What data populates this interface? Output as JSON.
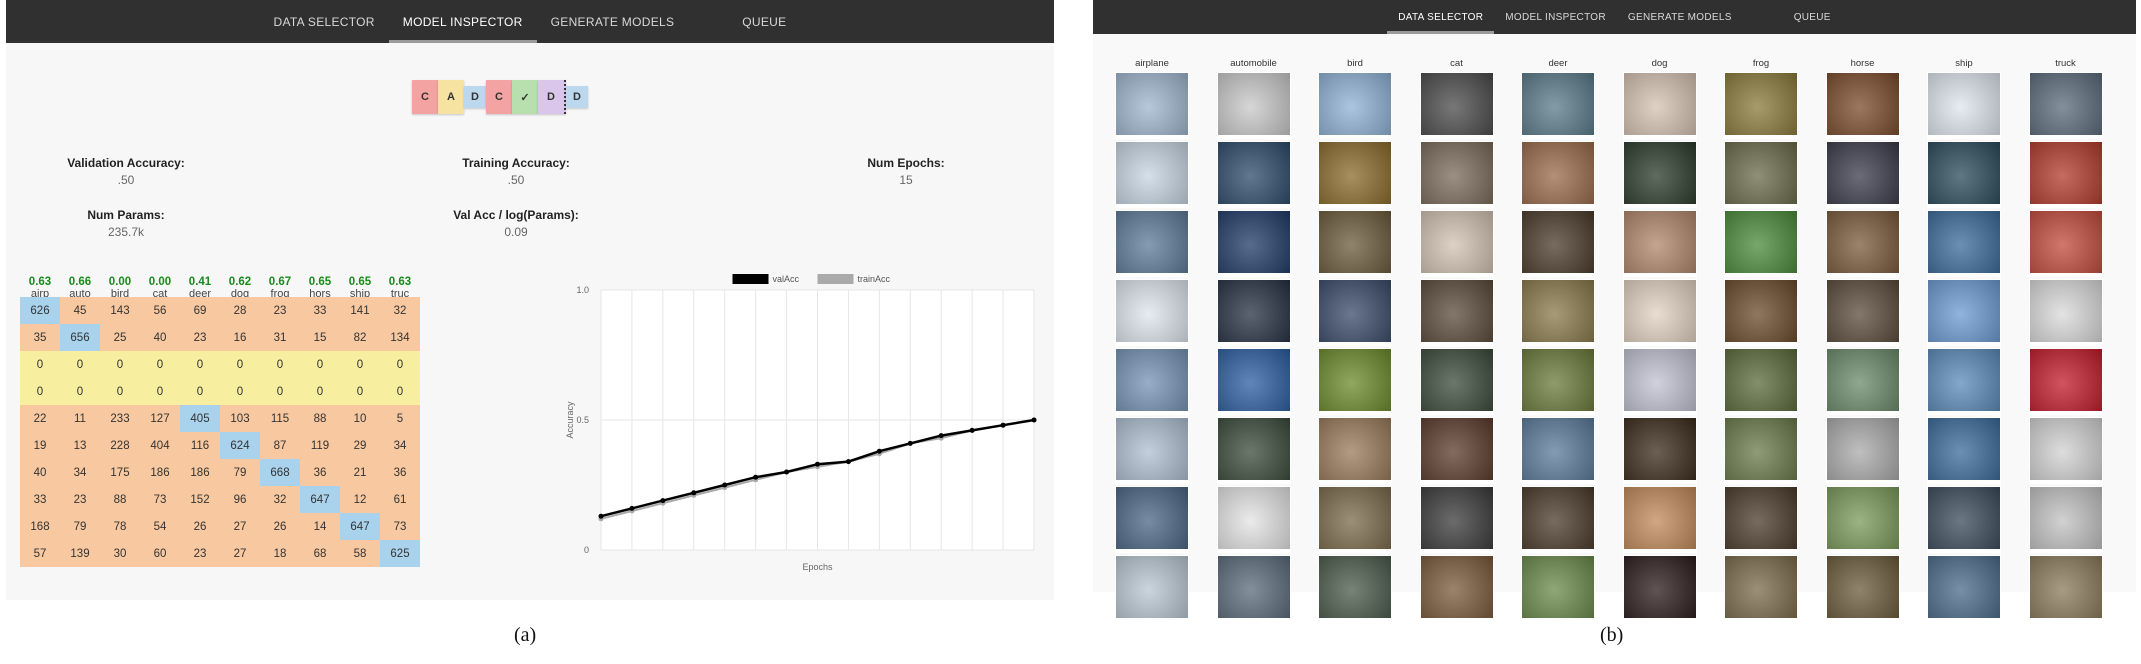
{
  "panel_a": {
    "nav": [
      "DATA SELECTOR",
      "MODEL INSPECTOR",
      "GENERATE MODELS",
      "QUEUE"
    ],
    "active_nav": "MODEL INSPECTOR",
    "architecture": [
      "C",
      "A",
      "D",
      "C",
      "✓",
      "D",
      "D"
    ],
    "stats": {
      "val_acc_label": "Validation Accuracy:",
      "val_acc": ".50",
      "train_acc_label": "Training Accuracy:",
      "train_acc": ".50",
      "epochs_label": "Num Epochs:",
      "epochs": "15",
      "params_label": "Num Params:",
      "params": "235.7k",
      "valacc_log_label": "Val Acc / log(Params):",
      "valacc_log": "0.09"
    },
    "confusion": {
      "accuracies": [
        "0.63",
        "0.66",
        "0.00",
        "0.00",
        "0.41",
        "0.62",
        "0.67",
        "0.65",
        "0.65",
        "0.63"
      ],
      "classes": [
        "airp",
        "auto",
        "bird",
        "cat",
        "deer",
        "dog",
        "frog",
        "hors",
        "ship",
        "truc"
      ],
      "rows": [
        [
          626,
          45,
          143,
          56,
          69,
          28,
          23,
          33,
          141,
          32
        ],
        [
          35,
          656,
          25,
          40,
          23,
          16,
          31,
          15,
          82,
          134
        ],
        [
          0,
          0,
          0,
          0,
          0,
          0,
          0,
          0,
          0,
          0
        ],
        [
          0,
          0,
          0,
          0,
          0,
          0,
          0,
          0,
          0,
          0
        ],
        [
          22,
          11,
          233,
          127,
          405,
          103,
          115,
          88,
          10,
          5
        ],
        [
          19,
          13,
          228,
          404,
          116,
          624,
          87,
          119,
          29,
          34
        ],
        [
          40,
          34,
          175,
          186,
          186,
          79,
          668,
          36,
          21,
          36
        ],
        [
          33,
          23,
          88,
          73,
          152,
          96,
          32,
          647,
          12,
          61
        ],
        [
          168,
          79,
          78,
          54,
          26,
          27,
          26,
          14,
          647,
          73
        ],
        [
          57,
          139,
          30,
          60,
          23,
          27,
          18,
          68,
          58,
          625
        ]
      ]
    }
  },
  "chart_data": {
    "type": "line",
    "xlabel": "Epochs",
    "ylabel": "Accuracy",
    "ylim": [
      0,
      1
    ],
    "yticks": [
      "0",
      "0.5",
      "1.0"
    ],
    "legend": "top",
    "grid": true,
    "x": [
      1,
      2,
      3,
      4,
      5,
      6,
      7,
      8,
      9,
      10,
      11,
      12,
      13,
      14,
      15
    ],
    "series": [
      {
        "name": "valAcc",
        "color": "#000000",
        "values": [
          0.13,
          0.16,
          0.19,
          0.22,
          0.25,
          0.28,
          0.3,
          0.33,
          0.34,
          0.38,
          0.41,
          0.44,
          0.46,
          0.48,
          0.5
        ]
      },
      {
        "name": "trainAcc",
        "color": "#aaaaaa",
        "values": [
          0.12,
          0.15,
          0.18,
          0.21,
          0.24,
          0.27,
          0.3,
          0.32,
          0.34,
          0.37,
          0.41,
          0.43,
          0.46,
          0.48,
          0.5
        ]
      }
    ]
  },
  "panel_b": {
    "nav": [
      "DATA SELECTOR",
      "MODEL INSPECTOR",
      "GENERATE MODELS",
      "QUEUE"
    ],
    "active_nav": "DATA SELECTOR",
    "classes": [
      "airplane",
      "automobile",
      "bird",
      "cat",
      "deer",
      "dog",
      "frog",
      "horse",
      "ship",
      "truck"
    ],
    "palettes": {
      "airplane": [
        "#9fb6cf",
        "#c8d5e2",
        "#5d7a99",
        "#dfe6ee",
        "#7593b5",
        "#aebfd2",
        "#4a6584",
        "#b9c7d3"
      ],
      "automobile": [
        "#c9c9c9",
        "#2b4a6a",
        "#1f3b66",
        "#243040",
        "#2a5ea0",
        "#3a4a3a",
        "#e4e4e4",
        "#5a6a7a"
      ],
      "bird": [
        "#8fb2d6",
        "#8a6a2a",
        "#6a5a3a",
        "#3a4a6a",
        "#6a8a2a",
        "#9a7a5a",
        "#7a6a4a",
        "#4a5a4a"
      ],
      "cat": [
        "#4a4a4a",
        "#7a6a5a",
        "#d2c2b2",
        "#5a4a3a",
        "#3a4a3a",
        "#5a3a2a",
        "#3a3a3a",
        "#7a5a3a"
      ],
      "deer": [
        "#5a7a8a",
        "#9a6a4a",
        "#4a3a2a",
        "#8a7a4a",
        "#6a7a3a",
        "#5a7a9a",
        "#4a3a2a",
        "#6a8a4a"
      ],
      "dog": [
        "#d6c2b2",
        "#2a3a2a",
        "#b2866a",
        "#e2d2c2",
        "#c2c2d2",
        "#3a2a1a",
        "#c28a5a",
        "#2a1a1a"
      ],
      "frog": [
        "#8a7a3a",
        "#6a6a4a",
        "#4a8a3a",
        "#6a4a2a",
        "#5a6a3a",
        "#6a7a4a",
        "#4a3a2a",
        "#7a6a4a"
      ],
      "horse": [
        "#7a4a2a",
        "#3a3a4a",
        "#7a5a3a",
        "#5a4a3a",
        "#6a8a6a",
        "#aaa",
        "#7a9a5a",
        "#6a5a3a"
      ],
      "ship": [
        "#dfe6ee",
        "#2a4a5a",
        "#3a6a9a",
        "#6a9ad2",
        "#5a8aba",
        "#3a6a9a",
        "#3a4a5a",
        "#4a6a8a"
      ],
      "truck": [
        "#5a6a7a",
        "#b23a2a",
        "#c24a3a",
        "#dadada",
        "#c21a2a",
        "#d2d2d2",
        "#c2c2c2",
        "#8a7a5a"
      ]
    }
  },
  "captions": [
    "(a)",
    "(b)"
  ]
}
